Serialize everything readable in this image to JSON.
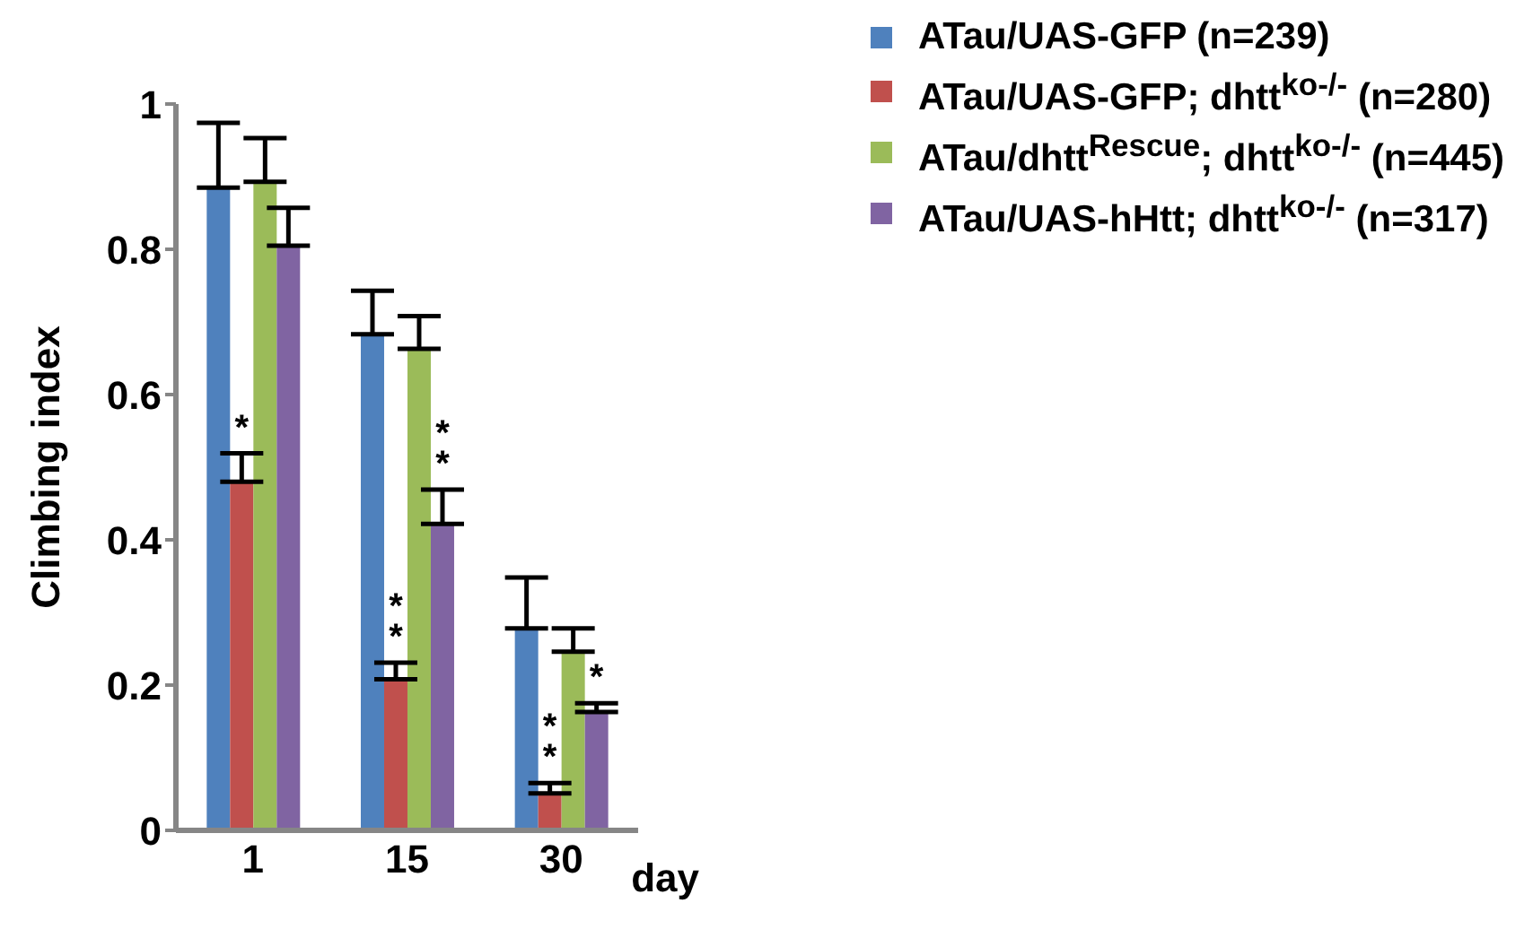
{
  "chart_data": {
    "type": "bar",
    "ylabel": "Climbing index",
    "xlabel": "day",
    "categories": [
      "1",
      "15",
      "30"
    ],
    "series": [
      {
        "name": "ATau/UAS-GFP (n=239)",
        "color": "#4f81bd",
        "values": [
          0.885,
          0.683,
          0.278
        ],
        "errors": [
          [
            0.885,
            0.974
          ],
          [
            0.683,
            0.743
          ],
          [
            0.278,
            0.348
          ]
        ]
      },
      {
        "name": "ATau/UAS-GFP; dhtt$^{ko-/-}$ (n=280)",
        "color": "#c0504d",
        "values": [
          0.48,
          0.208,
          0.051
        ],
        "errors": [
          [
            0.48,
            0.519
          ],
          [
            0.208,
            0.231
          ],
          [
            0.051,
            0.065
          ]
        ],
        "value_labels": [
          "*",
          "**",
          "**"
        ]
      },
      {
        "name": "ATau/dhtt$^{Rescue}$; dhtt$^{ko-/-}$ (n=445)",
        "color": "#9bbb59",
        "values": [
          0.893,
          0.663,
          0.246
        ],
        "errors": [
          [
            0.893,
            0.953
          ],
          [
            0.663,
            0.708
          ],
          [
            0.246,
            0.278
          ]
        ]
      },
      {
        "name": "ATau/UAS-hHtt; dhtt$^{ko-/-}$ (n=317)",
        "color": "#8064a2",
        "values": [
          0.805,
          0.422,
          0.163
        ],
        "errors": [
          [
            0.805,
            0.857
          ],
          [
            0.422,
            0.469
          ],
          [
            0.163,
            0.175
          ]
        ],
        "value_labels": [
          null,
          "**",
          "*"
        ]
      }
    ],
    "ylim": [
      0,
      1
    ],
    "yticks": [
      0,
      0.2,
      0.4,
      0.6,
      0.8,
      1
    ],
    "grid": false,
    "legend": "top right"
  }
}
